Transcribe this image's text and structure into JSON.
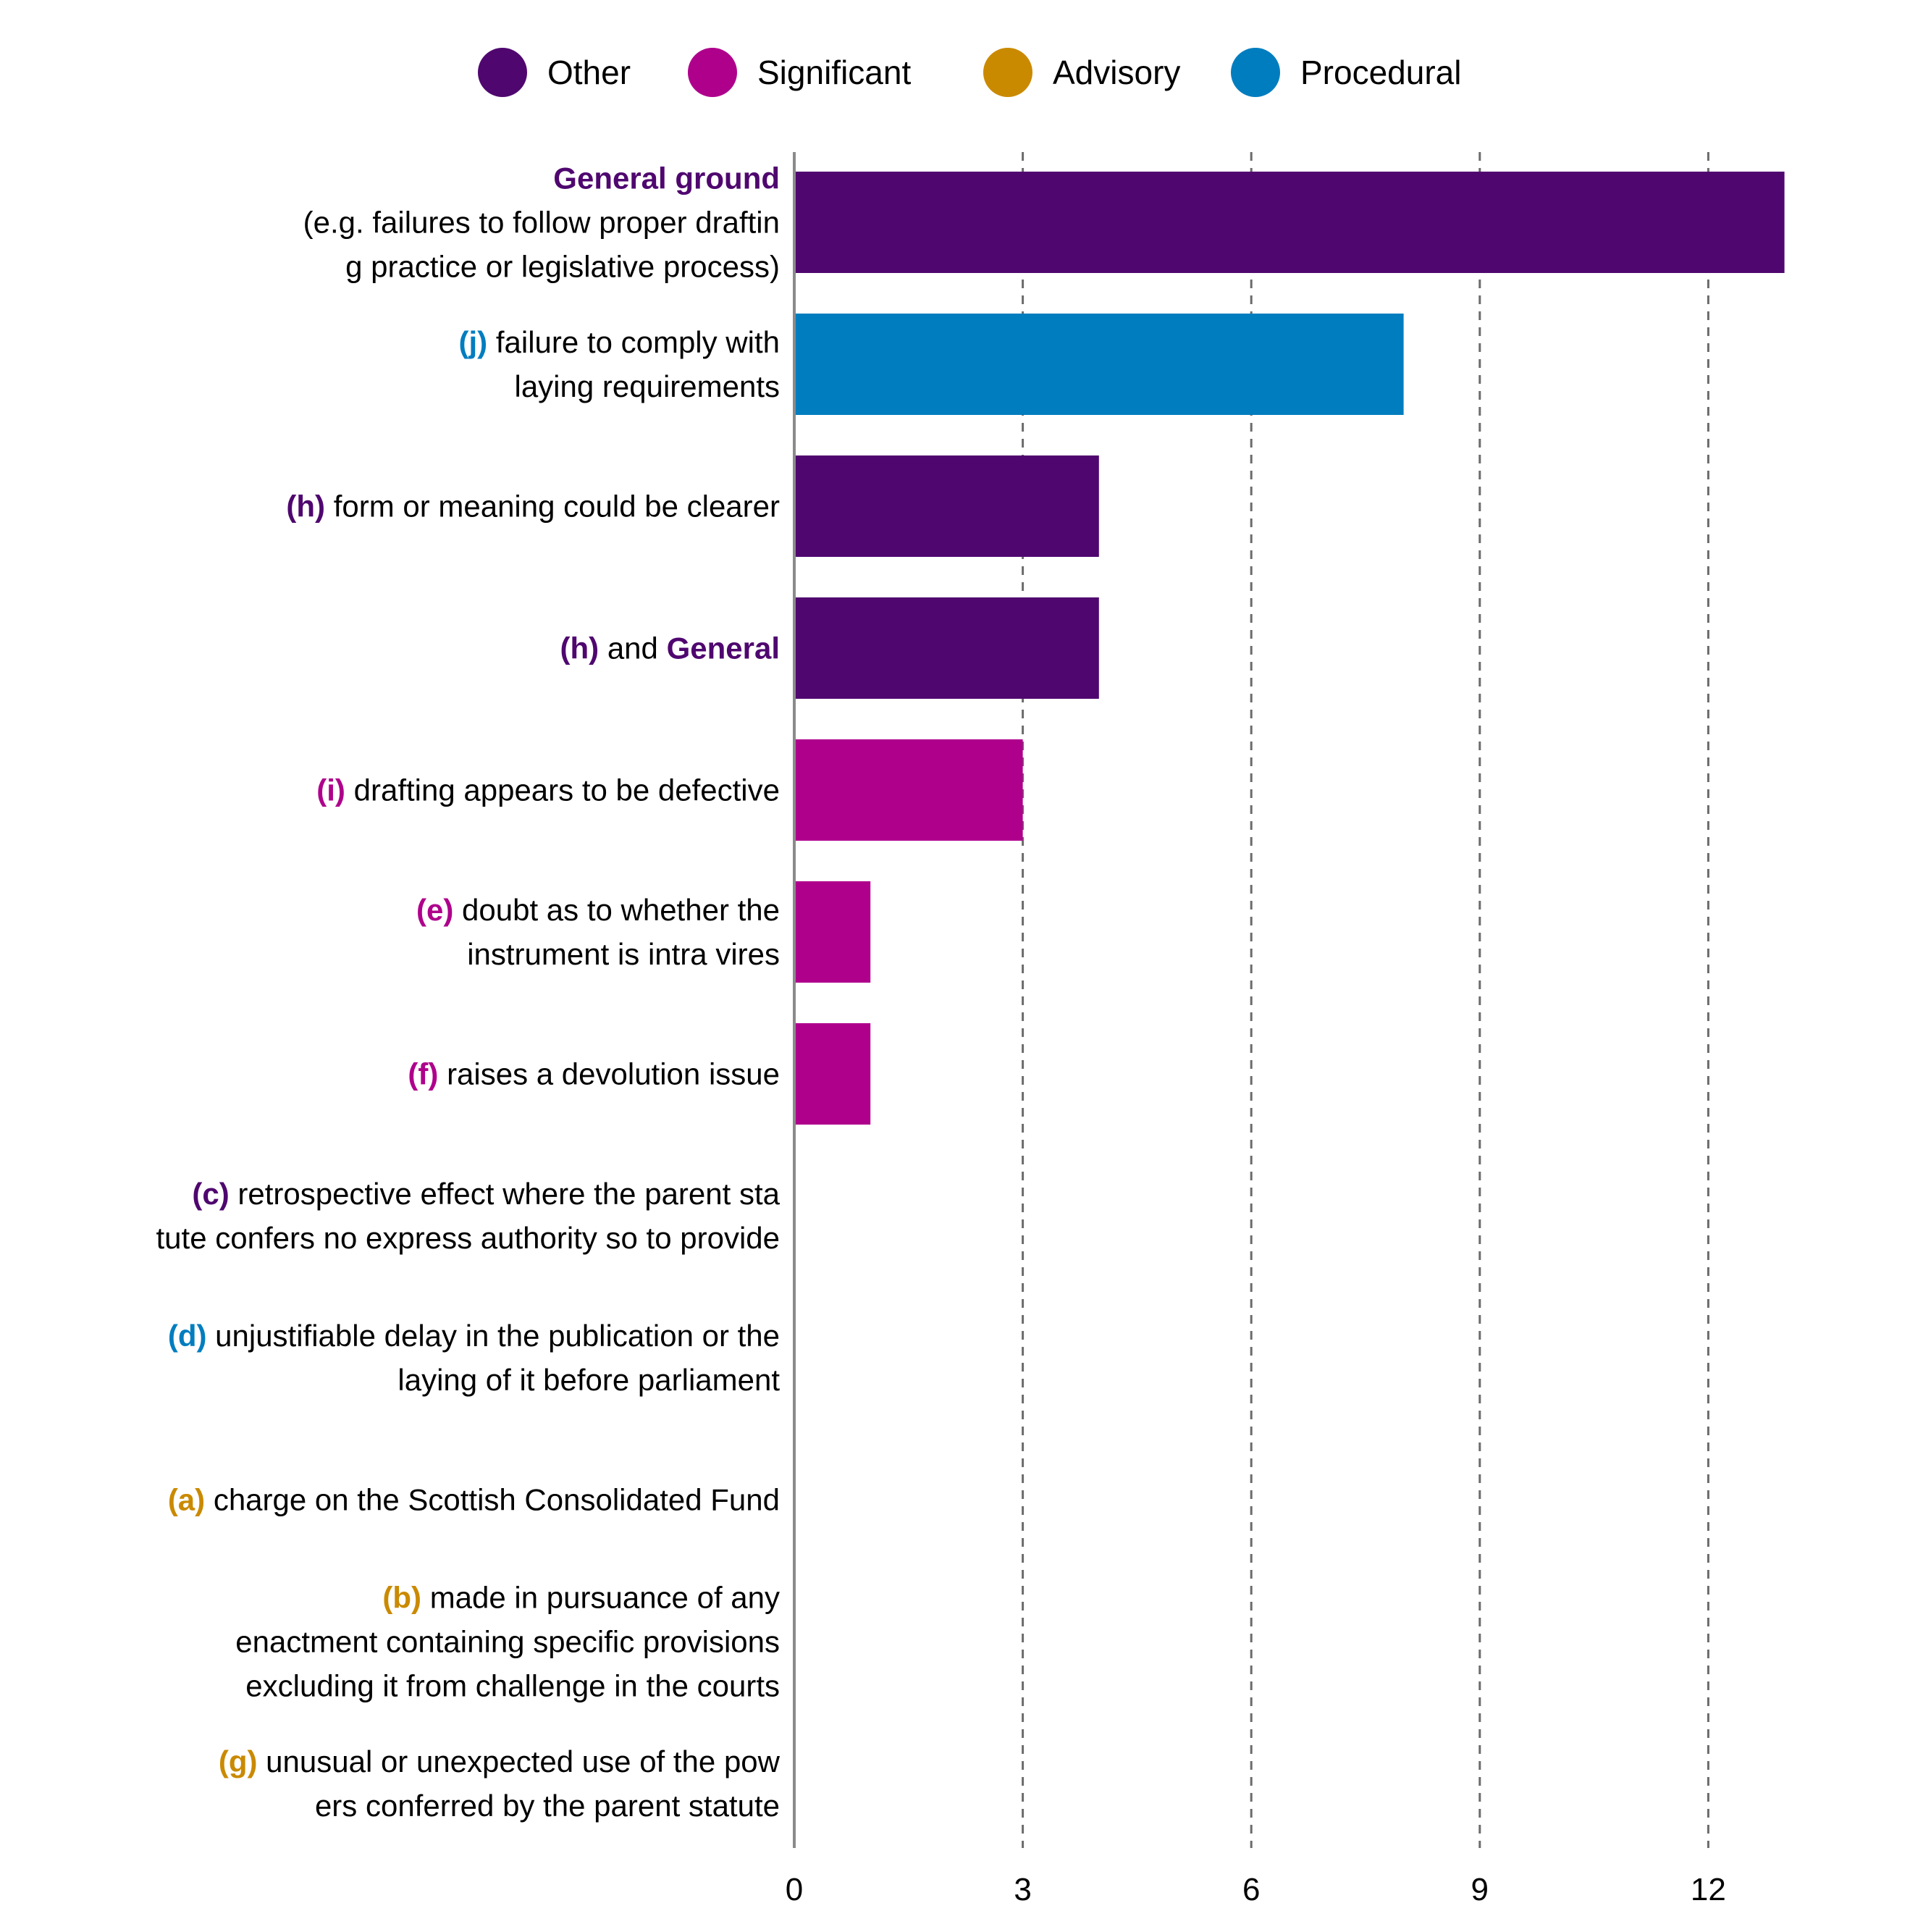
{
  "legend": [
    {
      "label": "Other",
      "color": "#4f076f"
    },
    {
      "label": "Significant",
      "color": "#af008c"
    },
    {
      "label": "Advisory",
      "color": "#ca8a00"
    },
    {
      "label": "Procedural",
      "color": "#007dbf"
    }
  ],
  "chart_data": {
    "type": "bar",
    "orientation": "horizontal",
    "xlim": [
      0,
      13
    ],
    "x_ticks": [
      "0",
      "3",
      "6",
      "9",
      "12"
    ],
    "grid": "vertical dashed",
    "legend_position": "top",
    "categories": [
      {
        "title": "General ground",
        "body": "(e.g. failures to follow proper drafting practice or legislative process)",
        "value": 13,
        "group": "Other",
        "color": "#4f076f"
      },
      {
        "code": "(j)",
        "body": "failure to comply with laying requirements",
        "value": 8,
        "group": "Procedural",
        "color": "#007dbf"
      },
      {
        "code": "(h)",
        "body": "form or meaning could be clearer",
        "value": 4,
        "group": "Other",
        "color": "#4f076f"
      },
      {
        "code": "(h)",
        "body": "and",
        "title": "General",
        "value": 4,
        "group": "Other",
        "color": "#4f076f"
      },
      {
        "code": "(i)",
        "body": "drafting appears to be defective",
        "value": 3,
        "group": "Significant",
        "color": "#af008c"
      },
      {
        "code": "(e)",
        "body": "doubt as to whether the instrument is intra vires",
        "value": 1,
        "group": "Significant",
        "color": "#af008c"
      },
      {
        "code": "(f)",
        "body": "raises a devolution issue",
        "value": 1,
        "group": "Significant",
        "color": "#af008c"
      },
      {
        "code": "(c)",
        "body": "retrospective effect where the parent statute confers no express authority so to provide",
        "value": 0,
        "group": "Other",
        "color": "#4f076f"
      },
      {
        "code": "(d)",
        "body": "unjustifiable delay in the publication or the laying of it before parliament",
        "value": 0,
        "group": "Procedural",
        "color": "#007dbf"
      },
      {
        "code": "(a)",
        "body": "charge on the Scottish Consolidated Fund",
        "value": 0,
        "group": "Advisory",
        "color": "#ca8a00"
      },
      {
        "code": "(b)",
        "body": "made in pursuance of any enactment containing specific provisions excluding it from challenge in the courts",
        "value": 0,
        "group": "Advisory",
        "color": "#ca8a00"
      },
      {
        "code": "(g)",
        "body": "unusual or unexpected use of the powers conferred by the parent statute",
        "value": 0,
        "group": "Advisory",
        "color": "#ca8a00"
      }
    ]
  }
}
